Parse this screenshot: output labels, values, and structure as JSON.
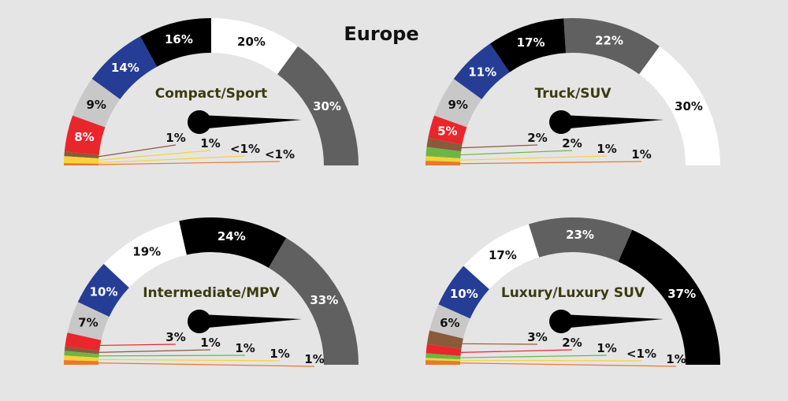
{
  "title": "Europe",
  "colors": {
    "background": "#e5e5e6",
    "needle": "#000000",
    "name_text": "#3b3b10",
    "gray": "#606060",
    "white": "#ffffff",
    "black": "#000000",
    "blue": "#263d96",
    "lightgray": "#c8c8c8",
    "red": "#e8262b",
    "brown": "#8b5a3a",
    "green": "#6cb644",
    "yellow": "#f6d238",
    "orange": "#e8792d"
  },
  "chart_data": [
    {
      "type": "gauge",
      "name": "Compact/Sport",
      "segments": [
        {
          "label": "30%",
          "value": 30,
          "color": "gray"
        },
        {
          "label": "20%",
          "value": 20,
          "color": "white"
        },
        {
          "label": "16%",
          "value": 16,
          "color": "black"
        },
        {
          "label": "14%",
          "value": 14,
          "color": "blue"
        },
        {
          "label": "9%",
          "value": 9,
          "color": "lightgray"
        },
        {
          "label": "8%",
          "value": 8,
          "color": "red"
        },
        {
          "label": "1%",
          "value": 1,
          "color": "brown"
        },
        {
          "label": "1%",
          "value": 1,
          "color": "yellow"
        },
        {
          "label": "<1%",
          "value": 0.5,
          "color": "yellow"
        },
        {
          "label": "<1%",
          "value": 0.5,
          "color": "orange"
        }
      ]
    },
    {
      "type": "gauge",
      "name": "Truck/SUV",
      "segments": [
        {
          "label": "30%",
          "value": 30,
          "color": "white"
        },
        {
          "label": "22%",
          "value": 22,
          "color": "gray"
        },
        {
          "label": "17%",
          "value": 17,
          "color": "black"
        },
        {
          "label": "11%",
          "value": 11,
          "color": "blue"
        },
        {
          "label": "9%",
          "value": 9,
          "color": "lightgray"
        },
        {
          "label": "5%",
          "value": 5,
          "color": "red"
        },
        {
          "label": "2%",
          "value": 2,
          "color": "brown"
        },
        {
          "label": "2%",
          "value": 2,
          "color": "green"
        },
        {
          "label": "1%",
          "value": 1,
          "color": "yellow"
        },
        {
          "label": "1%",
          "value": 1,
          "color": "orange"
        }
      ]
    },
    {
      "type": "gauge",
      "name": "Intermediate/MPV",
      "segments": [
        {
          "label": "33%",
          "value": 33,
          "color": "gray"
        },
        {
          "label": "24%",
          "value": 24,
          "color": "black"
        },
        {
          "label": "19%",
          "value": 19,
          "color": "white"
        },
        {
          "label": "10%",
          "value": 10,
          "color": "blue"
        },
        {
          "label": "7%",
          "value": 7,
          "color": "lightgray"
        },
        {
          "label": "3%",
          "value": 3,
          "color": "red"
        },
        {
          "label": "1%",
          "value": 1,
          "color": "brown"
        },
        {
          "label": "1%",
          "value": 1,
          "color": "green"
        },
        {
          "label": "1%",
          "value": 1,
          "color": "yellow"
        },
        {
          "label": "1%",
          "value": 1,
          "color": "orange"
        }
      ]
    },
    {
      "type": "gauge",
      "name": "Luxury/Luxury SUV",
      "segments": [
        {
          "label": "37%",
          "value": 37,
          "color": "black"
        },
        {
          "label": "23%",
          "value": 23,
          "color": "gray"
        },
        {
          "label": "17%",
          "value": 17,
          "color": "white"
        },
        {
          "label": "10%",
          "value": 10,
          "color": "blue"
        },
        {
          "label": "6%",
          "value": 6,
          "color": "lightgray"
        },
        {
          "label": "3%",
          "value": 3,
          "color": "brown"
        },
        {
          "label": "2%",
          "value": 2,
          "color": "red"
        },
        {
          "label": "1%",
          "value": 1,
          "color": "green"
        },
        {
          "label": "<1%",
          "value": 0.5,
          "color": "yellow"
        },
        {
          "label": "1%",
          "value": 1,
          "color": "orange"
        }
      ]
    }
  ]
}
